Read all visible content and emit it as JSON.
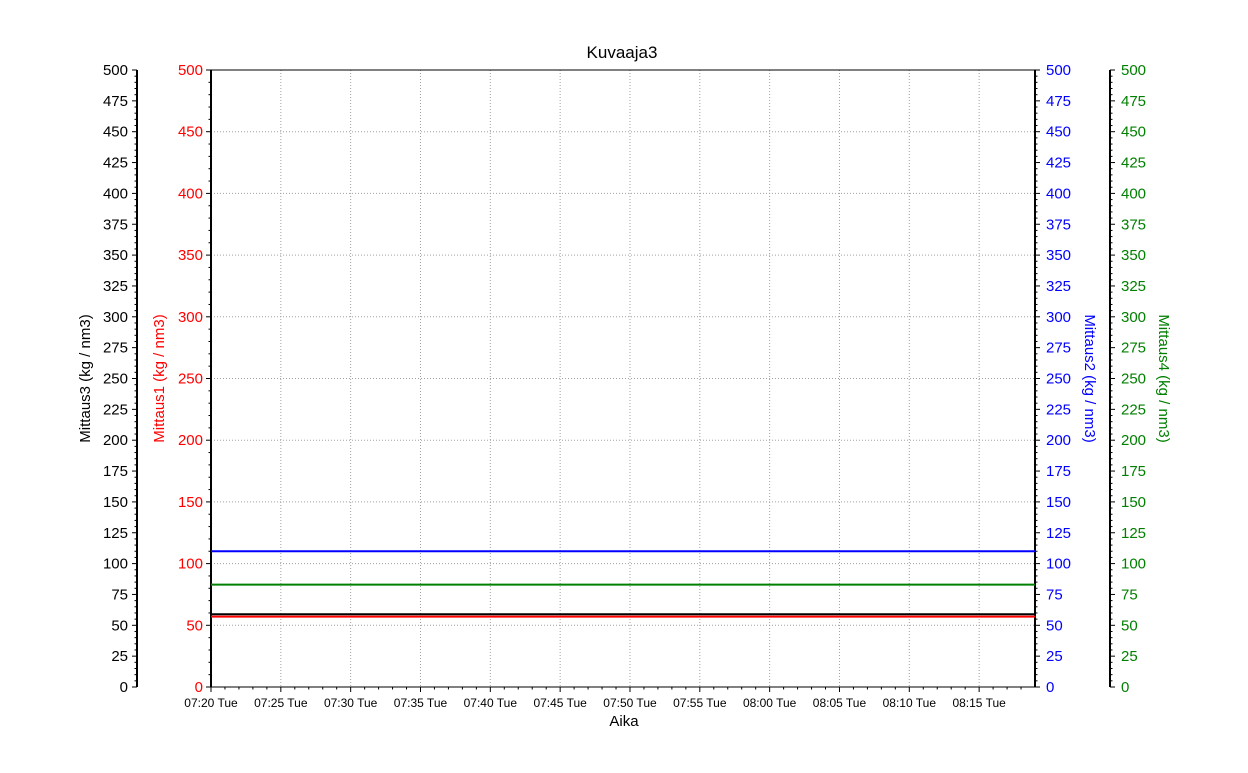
{
  "chart_data": {
    "type": "line",
    "title": "Kuvaaja3",
    "xlabel": "Aika",
    "x_ticks": [
      "07:20 Tue",
      "07:25 Tue",
      "07:30 Tue",
      "07:35 Tue",
      "07:40 Tue",
      "07:45 Tue",
      "07:50 Tue",
      "07:55 Tue",
      "08:00 Tue",
      "08:05 Tue",
      "08:10 Tue",
      "08:15 Tue"
    ],
    "x_range": [
      "07:20",
      "08:19"
    ],
    "grid": true,
    "y_axes": [
      {
        "id": "mittaus3",
        "label": "Mittaus3   (kg / nm3)",
        "side": "left-outer",
        "color": "#000000",
        "ylim": [
          0,
          500
        ],
        "major_step": 25
      },
      {
        "id": "mittaus1",
        "label": "Mittaus1   (kg / nm3)",
        "side": "left-inner",
        "color": "#ff0000",
        "ylim": [
          0,
          500
        ],
        "major_step": 50
      },
      {
        "id": "mittaus2",
        "label": "Mittaus2   (kg / nm3)",
        "side": "right-inner",
        "color": "#0000ff",
        "ylim": [
          0,
          500
        ],
        "major_step": 25
      },
      {
        "id": "mittaus4",
        "label": "Mittaus4   (kg / nm3)",
        "side": "right-outer",
        "color": "#008000",
        "ylim": [
          0,
          500
        ],
        "major_step": 25
      }
    ],
    "series": [
      {
        "name": "Mittaus1",
        "axis": "mittaus1",
        "color": "#ff0000",
        "x": [
          "07:20",
          "08:19"
        ],
        "values": [
          57,
          57
        ]
      },
      {
        "name": "Mittaus3",
        "axis": "mittaus3",
        "color": "#000000",
        "x": [
          "07:20",
          "08:19"
        ],
        "values": [
          59,
          59
        ]
      },
      {
        "name": "Mittaus4",
        "axis": "mittaus4",
        "color": "#008000",
        "x": [
          "07:20",
          "08:19"
        ],
        "values": [
          83,
          83
        ]
      },
      {
        "name": "Mittaus2",
        "axis": "mittaus2",
        "color": "#0000ff",
        "x": [
          "07:20",
          "08:19"
        ],
        "values": [
          110,
          110
        ]
      }
    ]
  }
}
